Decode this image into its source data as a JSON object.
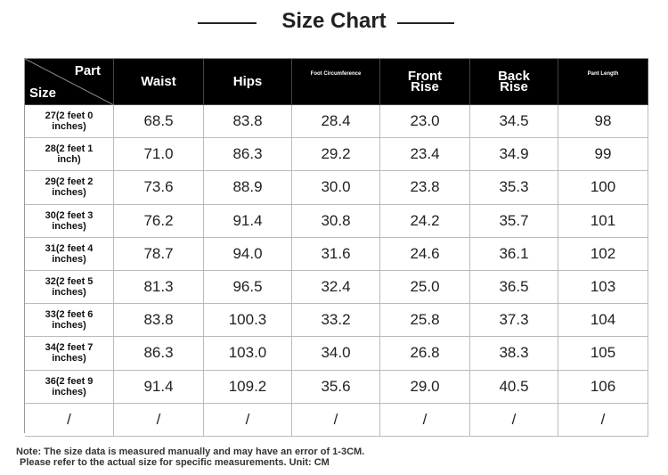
{
  "header": {
    "title": "Size Chart"
  },
  "table": {
    "corner": {
      "column_label": "Part",
      "row_label": "Size"
    },
    "columns": [
      "Waist",
      "Hips",
      "Foot Circumference",
      "Front Rise",
      "Back Rise",
      "Pant Length"
    ],
    "rows": [
      {
        "size": "27(2 feet 0 inches)",
        "cells": [
          "68.5",
          "83.8",
          "28.4",
          "23.0",
          "34.5",
          "98"
        ]
      },
      {
        "size": "28(2 feet 1 inch)",
        "cells": [
          "71.0",
          "86.3",
          "29.2",
          "23.4",
          "34.9",
          "99"
        ]
      },
      {
        "size": "29(2 feet 2 inches)",
        "cells": [
          "73.6",
          "88.9",
          "30.0",
          "23.8",
          "35.3",
          "100"
        ]
      },
      {
        "size": "30(2 feet 3 inches)",
        "cells": [
          "76.2",
          "91.4",
          "30.8",
          "24.2",
          "35.7",
          "101"
        ]
      },
      {
        "size": "31(2 feet 4 inches)",
        "cells": [
          "78.7",
          "94.0",
          "31.6",
          "24.6",
          "36.1",
          "102"
        ]
      },
      {
        "size": "32(2 feet 5 inches)",
        "cells": [
          "81.3",
          "96.5",
          "32.4",
          "25.0",
          "36.5",
          "103"
        ]
      },
      {
        "size": "33(2 feet 6 inches)",
        "cells": [
          "83.8",
          "100.3",
          "33.2",
          "25.8",
          "37.3",
          "104"
        ]
      },
      {
        "size": "34(2 feet 7 inches)",
        "cells": [
          "86.3",
          "103.0",
          "34.0",
          "26.8",
          "38.3",
          "105"
        ]
      },
      {
        "size": "36(2 feet 9 inches)",
        "cells": [
          "91.4",
          "109.2",
          "35.6",
          "29.0",
          "40.5",
          "106"
        ]
      },
      {
        "size": "/",
        "cells": [
          "/",
          "/",
          "/",
          "/",
          "/",
          "/"
        ]
      }
    ]
  },
  "notes": [
    "Note: The size data is measured manually and may have an error of 1-3CM.",
    "Please refer to the actual size for specific measurements. Unit: CM"
  ]
}
